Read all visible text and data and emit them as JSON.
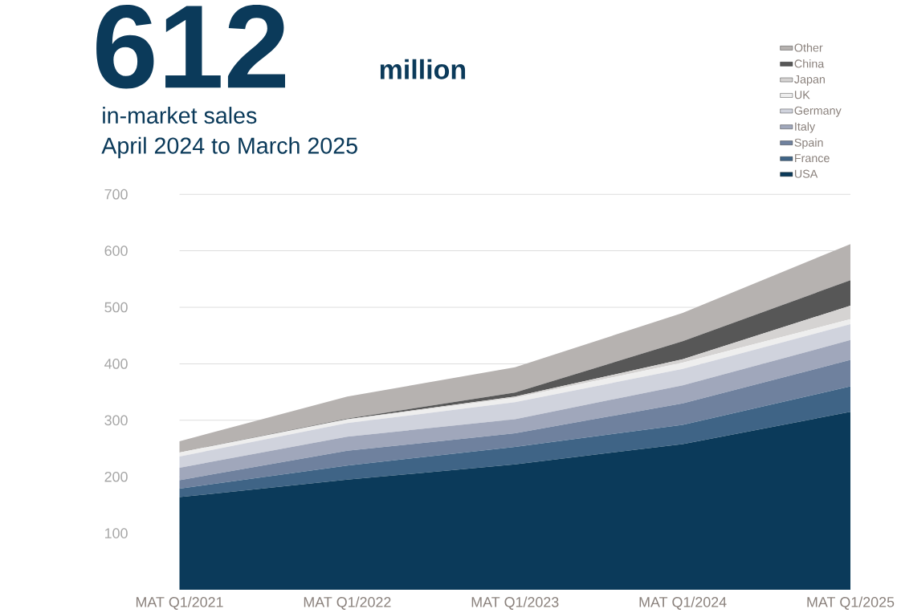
{
  "chart_data": {
    "type": "area",
    "title": "612",
    "subtitle": "million",
    "annotations": [
      "in-market sales",
      "April 2024 to March 2025"
    ],
    "categories": [
      "MAT Q1/2021",
      "MAT Q1/2022",
      "MAT Q1/2023",
      "MAT Q1/2024",
      "MAT Q1/2025"
    ],
    "stacked": true,
    "ylim": [
      0,
      700
    ],
    "yticks": [
      100,
      200,
      300,
      400,
      500,
      600,
      700
    ],
    "grid": "y",
    "legend": "top right",
    "marker": "none",
    "series": [
      {
        "name": "USA",
        "color": "#0b3a5a",
        "values": [
          164,
          195,
          222,
          258,
          315
        ]
      },
      {
        "name": "France",
        "color": "#3f6486",
        "values": [
          15,
          25,
          31,
          34,
          45
        ]
      },
      {
        "name": "Spain",
        "color": "#6f819e",
        "values": [
          15,
          26,
          24,
          38,
          47
        ]
      },
      {
        "name": "Italy",
        "color": "#a0a7bb",
        "values": [
          22,
          25,
          25,
          32,
          35
        ]
      },
      {
        "name": "Germany",
        "color": "#d0d3dd",
        "values": [
          20,
          24,
          30,
          29,
          28
        ]
      },
      {
        "name": "UK",
        "color": "#eeeeee",
        "values": [
          7,
          6,
          8,
          11,
          9
        ]
      },
      {
        "name": "Japan",
        "color": "#d5d3d2",
        "values": [
          0,
          1,
          2,
          6,
          24
        ]
      },
      {
        "name": "China",
        "color": "#575757",
        "values": [
          0,
          1,
          7,
          32,
          45
        ]
      },
      {
        "name": "Other",
        "color": "#b6b2b0",
        "values": [
          20,
          39,
          45,
          50,
          64
        ]
      }
    ]
  }
}
